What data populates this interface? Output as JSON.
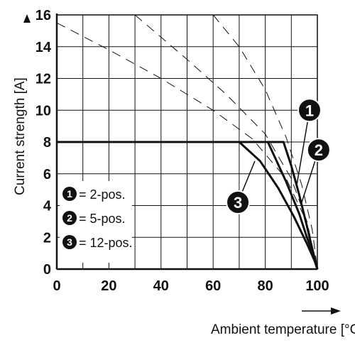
{
  "chart_data": {
    "type": "line",
    "xlabel": "Ambient temperature [°C]",
    "ylabel": "Current strength [A]",
    "xlim": [
      0,
      100
    ],
    "ylim": [
      0,
      16
    ],
    "x_ticks": [
      "0",
      "20",
      "40",
      "60",
      "80",
      "100"
    ],
    "y_ticks": [
      "0",
      "2",
      "4",
      "6",
      "8",
      "10",
      "12",
      "14",
      "16"
    ],
    "grid": true,
    "legend_position": "bottom-left",
    "legend": [
      {
        "marker": "1",
        "text": "= 2-pos."
      },
      {
        "marker": "2",
        "text": "= 5-pos."
      },
      {
        "marker": "3",
        "text": "= 12-pos."
      }
    ],
    "series": [
      {
        "marker": "1",
        "style": "solid",
        "x": [
          0,
          87,
          90,
          93,
          96,
          98,
          100
        ],
        "y": [
          8,
          8,
          6.5,
          4.7,
          2.7,
          1.3,
          0
        ]
      },
      {
        "marker": "2",
        "style": "solid",
        "x": [
          0,
          81,
          88,
          93,
          96,
          98.5,
          100
        ],
        "y": [
          8,
          8,
          5.5,
          3.5,
          2.0,
          0.9,
          0
        ]
      },
      {
        "marker": "3",
        "style": "solid",
        "x": [
          0,
          70,
          78,
          85,
          91,
          96,
          99,
          100
        ],
        "y": [
          8,
          8,
          6.8,
          5.1,
          3.3,
          1.6,
          0.5,
          0
        ]
      },
      {
        "style": "dashed",
        "x": [
          0,
          20,
          40,
          60,
          75,
          88,
          95,
          100
        ],
        "y": [
          15.5,
          13.8,
          12.0,
          10.0,
          8.2,
          5.7,
          3.3,
          0
        ]
      },
      {
        "style": "dashed",
        "x": [
          30,
          50,
          65,
          80,
          90,
          96,
          100
        ],
        "y": [
          16,
          13.2,
          11.0,
          8.5,
          5.7,
          3.0,
          0
        ]
      },
      {
        "style": "dashed",
        "x": [
          60,
          70,
          80,
          88,
          94,
          98,
          100
        ],
        "y": [
          16,
          14.0,
          11.3,
          8.3,
          5.3,
          2.5,
          0
        ]
      }
    ],
    "markers": [
      {
        "label": "1",
        "x": 97,
        "y": 10.0,
        "leader_to": [
          92,
          5.2
        ]
      },
      {
        "label": "2",
        "x": 100.5,
        "y": 7.5,
        "leader_to": [
          94,
          4.2
        ]
      },
      {
        "label": "3",
        "x": 69.5,
        "y": 4.2,
        "leader_to": [
          76,
          6.8
        ]
      }
    ]
  }
}
